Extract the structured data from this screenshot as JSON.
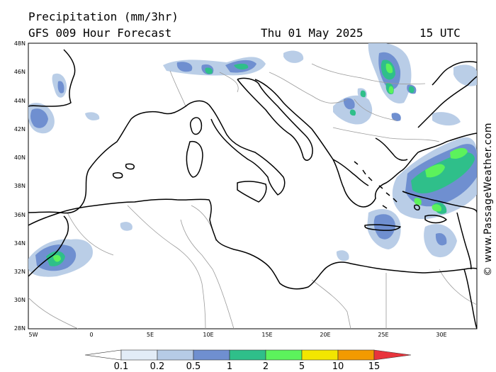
{
  "header": {
    "title": "Precipitation (mm/3hr)",
    "subtitle": "GFS 009 Hour Forecast",
    "date": "Thu 01 May 2025",
    "time": "15 UTC"
  },
  "credit": "© www.PassageWeather.com",
  "axes": {
    "lat_labels": [
      "48N",
      "46N",
      "44N",
      "42N",
      "40N",
      "38N",
      "36N",
      "34N",
      "32N",
      "30N",
      "28N"
    ],
    "lon_labels": [
      "5W",
      "0",
      "5E",
      "10E",
      "15E",
      "20E",
      "25E",
      "30E"
    ]
  },
  "colorbar": {
    "labels": [
      "0.1",
      "0.2",
      "0.5",
      "1",
      "2",
      "5",
      "10",
      "15"
    ],
    "colors": [
      "#ffffff",
      "#e2ecf7",
      "#b6cbe6",
      "#6f8fd0",
      "#2fbf8a",
      "#5cf25c",
      "#f2e600",
      "#f29a00",
      "#e8343c"
    ]
  },
  "map_colors": {
    "land_border": "#9a9a9a",
    "coast": "#000000"
  }
}
